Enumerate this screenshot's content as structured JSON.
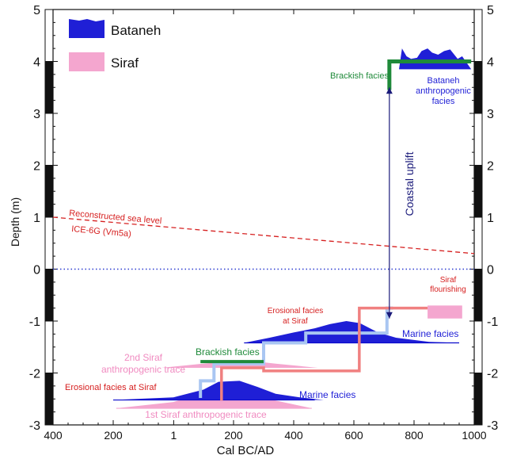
{
  "colors": {
    "bataneh": "#1f1fd6",
    "bataneh_dark": "#0a0acc",
    "siraf": "#f4a6cf",
    "sealevel": "#d62020",
    "zero_line": "#2a3ad0",
    "brackish": "#1f8a3a",
    "steps_light_blue": "#a9c6f2",
    "steps_red": "#f08080",
    "arrow": "#1a1a7a"
  },
  "chart_data": {
    "type": "area",
    "xlabel": "Cal BC/AD",
    "ylabel": "Depth (m)",
    "xlim": [
      -400,
      1000
    ],
    "ylim": [
      -3,
      5
    ],
    "x_ticks": [
      {
        "v": -400,
        "label": "400"
      },
      {
        "v": -200,
        "label": "200"
      },
      {
        "v": 1,
        "label": "1"
      },
      {
        "v": 200,
        "label": "200"
      },
      {
        "v": 400,
        "label": "400"
      },
      {
        "v": 600,
        "label": "600"
      },
      {
        "v": 800,
        "label": "800"
      },
      {
        "v": 1000,
        "label": "1000"
      }
    ],
    "y_ticks": [
      {
        "v": 5,
        "label": "5"
      },
      {
        "v": 4,
        "label": "4"
      },
      {
        "v": 3,
        "label": "3"
      },
      {
        "v": 2,
        "label": "2"
      },
      {
        "v": 1,
        "label": "1"
      },
      {
        "v": 0,
        "label": "0"
      },
      {
        "v": -1,
        "label": "-1"
      },
      {
        "v": -2,
        "label": "-2"
      },
      {
        "v": -3,
        "label": "-3"
      }
    ],
    "legend": {
      "placement": "top-left",
      "entries": [
        {
          "name": "Bataneh",
          "color": "#1f1fd6"
        },
        {
          "name": "Siraf",
          "color": "#f4a6cf"
        }
      ]
    },
    "sea_level": {
      "label_1": "Reconstructed sea level",
      "label_2": "ICE-6G (Vm5a)",
      "points": [
        [
          -400,
          1.0
        ],
        [
          1000,
          0.3
        ]
      ]
    },
    "zero_level": 0,
    "distributions": [
      {
        "name": "1st Siraf anthropogenic trace",
        "series": "Siraf",
        "base": -2.68,
        "points": [
          [
            -190,
            0
          ],
          [
            0,
            0.12
          ],
          [
            100,
            0.3
          ],
          [
            180,
            0.45
          ],
          [
            260,
            0.35
          ],
          [
            340,
            0.15
          ],
          [
            460,
            0
          ]
        ]
      },
      {
        "name": "2nd Siraf anthropogenic trace",
        "series": "Siraf",
        "base": -1.9,
        "points": [
          [
            -40,
            0
          ],
          [
            100,
            0.08
          ],
          [
            230,
            0.15
          ],
          [
            340,
            0.08
          ],
          [
            480,
            0
          ]
        ]
      },
      {
        "name": "Siraf flourishing",
        "series": "Siraf",
        "base": -0.95,
        "points": [
          [
            845,
            0.25
          ],
          [
            960,
            0.25
          ]
        ]
      },
      {
        "name": "Bataneh lower marine",
        "series": "Bataneh",
        "base": -2.52,
        "points": [
          [
            -200,
            0
          ],
          [
            0,
            0.05
          ],
          [
            100,
            0.2
          ],
          [
            150,
            0.35
          ],
          [
            220,
            0.37
          ],
          [
            280,
            0.25
          ],
          [
            340,
            0.12
          ],
          [
            420,
            0.05
          ],
          [
            500,
            0
          ]
        ]
      },
      {
        "name": "Bataneh upper marine",
        "series": "Bataneh",
        "base": -1.42,
        "points": [
          [
            235,
            0
          ],
          [
            320,
            0.1
          ],
          [
            400,
            0.2
          ],
          [
            470,
            0.28
          ],
          [
            520,
            0.36
          ],
          [
            575,
            0.42
          ],
          [
            620,
            0.38
          ],
          [
            680,
            0.2
          ],
          [
            740,
            0.1
          ],
          [
            850,
            0.02
          ],
          [
            950,
            0
          ]
        ]
      },
      {
        "name": "Bataneh anthropogenic",
        "series": "Bataneh",
        "base": 3.85,
        "points": [
          [
            750,
            0
          ],
          [
            760,
            0.4
          ],
          [
            775,
            0.25
          ],
          [
            790,
            0.2
          ],
          [
            810,
            0.22
          ],
          [
            825,
            0.35
          ],
          [
            845,
            0.4
          ],
          [
            860,
            0.32
          ],
          [
            880,
            0.28
          ],
          [
            900,
            0.35
          ],
          [
            920,
            0.38
          ],
          [
            945,
            0.2
          ],
          [
            960,
            0.25
          ],
          [
            990,
            0
          ]
        ]
      }
    ],
    "step_lines": [
      {
        "name": "light-blue",
        "points": [
          [
            90,
            -2.48
          ],
          [
            90,
            -2.15
          ],
          [
            135,
            -2.15
          ],
          [
            135,
            -1.82
          ],
          [
            300,
            -1.82
          ],
          [
            300,
            -1.42
          ],
          [
            440,
            -1.42
          ],
          [
            440,
            -1.23
          ],
          [
            710,
            -1.23
          ],
          [
            710,
            -0.75
          ],
          [
            730,
            -0.75
          ]
        ]
      },
      {
        "name": "red",
        "points": [
          [
            160,
            -2.53
          ],
          [
            160,
            -1.9
          ],
          [
            300,
            -1.9
          ],
          [
            300,
            -1.96
          ],
          [
            618,
            -1.96
          ],
          [
            618,
            -0.75
          ],
          [
            845,
            -0.75
          ]
        ]
      },
      {
        "name": "brackish-lower",
        "points": [
          [
            90,
            -1.78
          ],
          [
            300,
            -1.78
          ]
        ]
      },
      {
        "name": "brackish-upper",
        "points": [
          [
            718,
            3.45
          ],
          [
            718,
            4.0
          ],
          [
            990,
            4.0
          ]
        ]
      }
    ],
    "uplift": {
      "x": 718,
      "from": -0.95,
      "to": 3.5,
      "label": "Coastal uplift"
    },
    "annotations": {
      "brackish_upper": "Brackish facies",
      "bataneh_anthro_1": "Bataneh",
      "bataneh_anthro_2": "anthropogenic",
      "bataneh_anthro_3": "facies",
      "siraf_flourishing_1": "Siraf",
      "siraf_flourishing_2": "flourishing",
      "erosional_upper_1": "Erosional facies",
      "erosional_upper_2": "at Siraf",
      "marine_upper": "Marine facies",
      "second_trace_1": "2nd Siraf",
      "second_trace_2": "anthropogenic trace",
      "brackish_lower": "Brackish facies",
      "erosional_lower": "Erosional facies at Siraf",
      "marine_lower": "Marine facies",
      "first_trace": "1st Siraf anthropogenic trace"
    }
  }
}
